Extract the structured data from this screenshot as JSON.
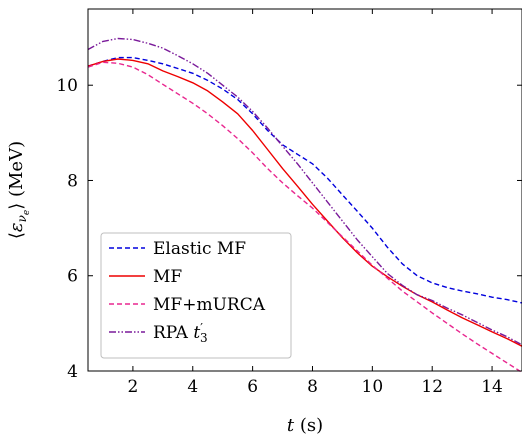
{
  "chart_data": {
    "type": "line",
    "xlabel": "t (s)",
    "ylabel": "⟨ε_νe⟩ (MeV)",
    "xlim": [
      0.5,
      15
    ],
    "ylim": [
      4,
      11.6
    ],
    "xticks": [
      2,
      4,
      6,
      8,
      10,
      12,
      14
    ],
    "yticks": [
      4,
      6,
      8,
      10
    ],
    "legend_position": "bottom-left",
    "grid": false,
    "series": [
      {
        "name": "Elastic MF",
        "color": "#0000dd",
        "dash": "dashed",
        "x": [
          0.5,
          1.0,
          1.5,
          2.0,
          2.5,
          3.0,
          3.5,
          4.0,
          4.5,
          5.0,
          5.5,
          6.0,
          6.5,
          7.0,
          7.5,
          8.0,
          8.5,
          9.0,
          9.5,
          10.0,
          10.5,
          11.0,
          11.5,
          12.0,
          12.5,
          13.0,
          13.5,
          14.0,
          14.5,
          15.0
        ],
        "y": [
          10.4,
          10.5,
          10.58,
          10.58,
          10.52,
          10.45,
          10.35,
          10.25,
          10.1,
          9.92,
          9.7,
          9.4,
          9.05,
          8.75,
          8.55,
          8.35,
          8.05,
          7.7,
          7.35,
          7.0,
          6.6,
          6.25,
          6.0,
          5.85,
          5.75,
          5.68,
          5.62,
          5.55,
          5.5,
          5.43
        ]
      },
      {
        "name": "MF",
        "color": "#ee0000",
        "dash": "solid",
        "x": [
          0.5,
          1.0,
          1.5,
          2.0,
          2.5,
          3.0,
          3.5,
          4.0,
          4.5,
          5.0,
          5.5,
          6.0,
          6.5,
          7.0,
          7.5,
          8.0,
          8.5,
          9.0,
          9.5,
          10.0,
          10.5,
          11.0,
          11.5,
          12.0,
          12.5,
          13.0,
          13.5,
          14.0,
          14.5,
          15.0
        ],
        "y": [
          10.4,
          10.5,
          10.55,
          10.52,
          10.45,
          10.3,
          10.18,
          10.05,
          9.88,
          9.65,
          9.4,
          9.05,
          8.65,
          8.25,
          7.88,
          7.5,
          7.15,
          6.8,
          6.48,
          6.2,
          5.98,
          5.78,
          5.6,
          5.45,
          5.28,
          5.12,
          4.97,
          4.82,
          4.68,
          4.52
        ]
      },
      {
        "name": "MF+mURCA",
        "color": "#e8278f",
        "dash": "dashed",
        "x": [
          0.5,
          1.0,
          1.5,
          2.0,
          2.5,
          3.0,
          3.5,
          4.0,
          4.5,
          5.0,
          5.5,
          6.0,
          6.5,
          7.0,
          7.5,
          8.0,
          8.5,
          9.0,
          9.5,
          10.0,
          10.5,
          11.0,
          11.5,
          12.0,
          12.5,
          13.0,
          13.5,
          14.0,
          14.5,
          15.0
        ],
        "y": [
          10.38,
          10.48,
          10.46,
          10.38,
          10.22,
          10.02,
          9.82,
          9.62,
          9.4,
          9.15,
          8.88,
          8.58,
          8.25,
          7.95,
          7.68,
          7.42,
          7.12,
          6.82,
          6.52,
          6.22,
          5.95,
          5.68,
          5.45,
          5.22,
          5.0,
          4.78,
          4.57,
          4.37,
          4.17,
          3.97
        ]
      },
      {
        "name": "RPA t′3",
        "color": "#7a1a9a",
        "dash": "dashdotdot",
        "x": [
          0.5,
          1.0,
          1.5,
          2.0,
          2.5,
          3.0,
          3.5,
          4.0,
          4.5,
          5.0,
          5.5,
          6.0,
          6.5,
          7.0,
          7.5,
          8.0,
          8.5,
          9.0,
          9.5,
          10.0,
          10.5,
          11.0,
          11.5,
          12.0,
          12.5,
          13.0,
          13.5,
          14.0,
          14.5,
          15.0
        ],
        "y": [
          10.75,
          10.92,
          10.98,
          10.96,
          10.88,
          10.78,
          10.62,
          10.45,
          10.25,
          10.0,
          9.75,
          9.45,
          9.1,
          8.72,
          8.35,
          7.95,
          7.55,
          7.15,
          6.75,
          6.4,
          6.05,
          5.8,
          5.6,
          5.48,
          5.32,
          5.18,
          5.02,
          4.86,
          4.72,
          4.55
        ]
      }
    ]
  }
}
